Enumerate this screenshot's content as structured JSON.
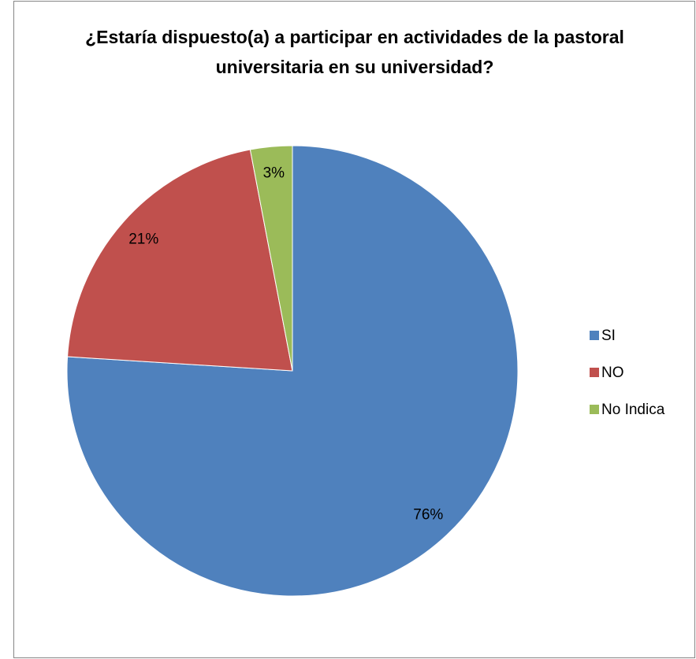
{
  "chart_data": {
    "type": "pie",
    "title": "¿Estaría dispuesto(a) a participar en actividades de la pastoral universitaria en su universidad?",
    "categories": [
      "SI",
      "NO",
      "No Indica"
    ],
    "values": [
      76,
      21,
      3
    ],
    "value_labels": [
      "76%",
      "21%",
      "3%"
    ],
    "colors": [
      "#4f81bd",
      "#c0504d",
      "#9bbb59"
    ],
    "legend": "right"
  }
}
